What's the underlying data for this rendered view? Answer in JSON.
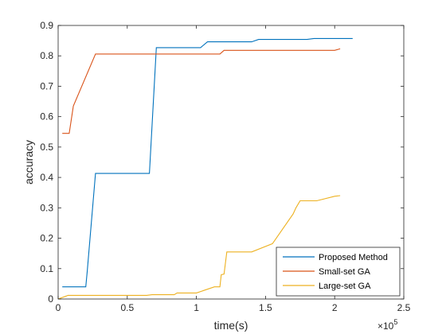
{
  "chart_data": {
    "type": "line",
    "xlabel": "time(s)",
    "ylabel": "accuracy",
    "x_multiplier_label": "×10",
    "x_multiplier_exp": "5",
    "xlim": [
      0,
      2.5
    ],
    "ylim": [
      0,
      0.9
    ],
    "xticks": [
      0,
      0.5,
      1,
      1.5,
      2,
      2.5
    ],
    "xtick_labels": [
      "0",
      "0.5",
      "1",
      "1.5",
      "2",
      "2.5"
    ],
    "yticks": [
      0,
      0.1,
      0.2,
      0.3,
      0.4,
      0.5,
      0.6,
      0.7,
      0.8,
      0.9
    ],
    "ytick_labels": [
      "0",
      "0.1",
      "0.2",
      "0.3",
      "0.4",
      "0.5",
      "0.6",
      "0.7",
      "0.8",
      "0.9"
    ],
    "grid": false,
    "legend_position": "bottom-right",
    "series": [
      {
        "name": "Proposed Method",
        "color": "#0072BD",
        "x": [
          0.03,
          0.2,
          0.21,
          0.27,
          0.66,
          0.71,
          1.03,
          1.08,
          1.4,
          1.45,
          1.8,
          1.85,
          2.13
        ],
        "y": [
          0.04,
          0.04,
          0.09,
          0.413,
          0.413,
          0.827,
          0.827,
          0.846,
          0.846,
          0.854,
          0.854,
          0.857,
          0.857
        ]
      },
      {
        "name": "Small-set GA",
        "color": "#D95319",
        "x": [
          0.03,
          0.08,
          0.11,
          0.27,
          1.17,
          1.2,
          2.0,
          2.04
        ],
        "y": [
          0.545,
          0.545,
          0.635,
          0.806,
          0.806,
          0.818,
          0.818,
          0.823
        ]
      },
      {
        "name": "Large-set GA",
        "color": "#EDB120",
        "x": [
          0.0,
          0.06,
          0.07,
          0.64,
          0.68,
          0.84,
          0.86,
          1.0,
          1.13,
          1.17,
          1.18,
          1.2,
          1.22,
          1.4,
          1.55,
          1.7,
          1.72,
          1.75,
          1.87,
          2.0,
          2.04
        ],
        "y": [
          0.0,
          0.01,
          0.012,
          0.012,
          0.014,
          0.014,
          0.02,
          0.02,
          0.04,
          0.04,
          0.08,
          0.082,
          0.155,
          0.155,
          0.182,
          0.28,
          0.3,
          0.323,
          0.323,
          0.338,
          0.34
        ]
      }
    ]
  }
}
